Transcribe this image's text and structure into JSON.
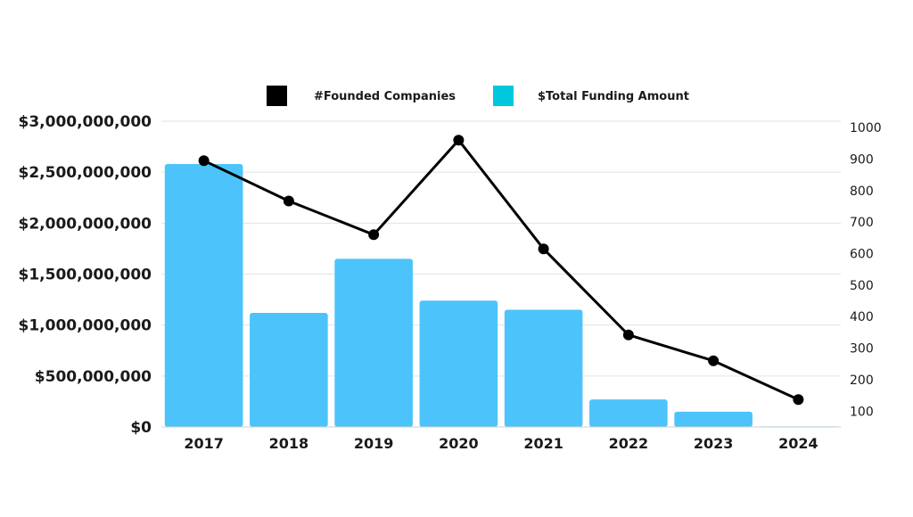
{
  "chart_data": {
    "type": "bar",
    "title": "",
    "xlabel": "",
    "ylabel": "",
    "categories": [
      "2017",
      "2018",
      "2019",
      "2020",
      "2021",
      "2022",
      "2023",
      "2024"
    ],
    "series": [
      {
        "name": "$Total Funding Amount",
        "type": "bar",
        "axis": "left",
        "color": "#4CC4FB",
        "values": [
          2580000000,
          1120000000,
          1650000000,
          1240000000,
          1150000000,
          270000000,
          150000000,
          5000000
        ]
      },
      {
        "name": "#Founded Companies",
        "type": "line",
        "axis": "right",
        "color": "#000000",
        "values": [
          895,
          767,
          660,
          960,
          615,
          342,
          260,
          137
        ]
      }
    ],
    "y_left": {
      "ylim": [
        0,
        3000000000
      ],
      "ticks": [
        0,
        500000000,
        1000000000,
        1500000000,
        2000000000,
        2500000000,
        3000000000
      ],
      "tick_labels": [
        "$0",
        "$500,000,000",
        "$1,000,000,000",
        "$1,500,000,000",
        "$2,000,000,000",
        "$2,500,000,000",
        "$3,000,000,000"
      ]
    },
    "y_right": {
      "ylim": [
        50,
        1020
      ],
      "ticks": [
        100,
        200,
        300,
        400,
        500,
        600,
        700,
        800,
        900,
        1000
      ],
      "tick_labels": [
        "100",
        "200",
        "300",
        "400",
        "500",
        "600",
        "700",
        "800",
        "900",
        "1000"
      ]
    },
    "grid": true,
    "legend": {
      "position": "top-center",
      "items": [
        {
          "label": "#Founded Companies",
          "color": "#000000"
        },
        {
          "label": "$Total Funding Amount",
          "color": "#00C8DC"
        }
      ]
    }
  }
}
